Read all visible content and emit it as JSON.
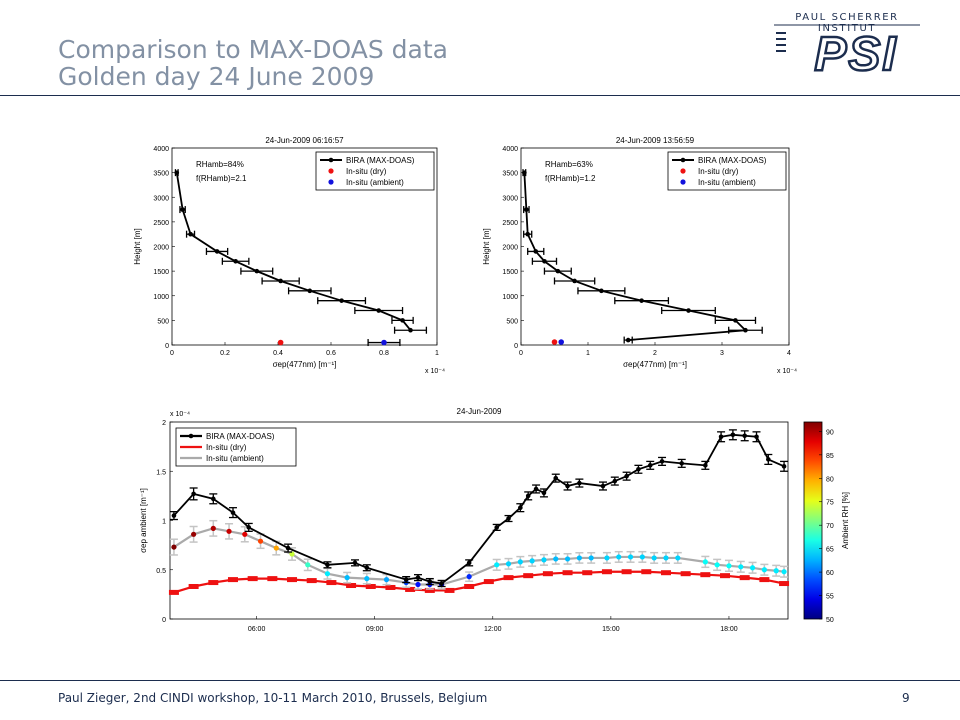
{
  "header": {
    "title_line1": "Comparison to MAX-DOAS data",
    "title_line2": "Golden day 24 June 2009",
    "logo_text": "PAUL SCHERRER INSTITUT",
    "logo_mark": "PSI"
  },
  "footer": {
    "text": "Paul Zieger, 2nd CINDI workshop, 10-11 March 2010, Brussels, Belgium",
    "page_number": "9"
  },
  "colors": {
    "title": "#8391a4",
    "rule": "#1c2d4e",
    "maxdoas": "#000000",
    "dry": "#ee1111",
    "ambient": "#aaaaaa"
  },
  "chart_data": [
    {
      "type": "line",
      "title": "24-Jun-2009 06:16:57",
      "xlabel": "σep(477nm) [m⁻¹]",
      "ylabel": "Height [m]",
      "x_exponent": "x 10⁻⁴",
      "xlim": [
        0,
        1
      ],
      "ylim": [
        0,
        4000
      ],
      "xticks": [
        "0",
        "0.2",
        "0.4",
        "0.6",
        "0.8",
        "1"
      ],
      "yticks": [
        "0",
        "500",
        "1000",
        "1500",
        "2000",
        "2500",
        "3000",
        "3500",
        "4000"
      ],
      "annotations": [
        "RHamb=84%",
        "f(RHamb)=2.1"
      ],
      "legend": {
        "position": "top-right",
        "entries": [
          "BIRA (MAX-DOAS)",
          "In-situ (dry)",
          "In-situ (ambient)"
        ]
      },
      "series": [
        {
          "name": "BIRA (MAX-DOAS)",
          "x": [
            0.018,
            0.04,
            0.07,
            0.17,
            0.24,
            0.32,
            0.41,
            0.52,
            0.64,
            0.78,
            0.87,
            0.9
          ],
          "y": [
            3500,
            2750,
            2250,
            1900,
            1700,
            1500,
            1300,
            1100,
            900,
            700,
            500,
            300
          ],
          "xerr": [
            0.005,
            0.01,
            0.015,
            0.04,
            0.05,
            0.06,
            0.07,
            0.08,
            0.09,
            0.09,
            0.04,
            0.06
          ]
        },
        {
          "name": "In-situ (dry)",
          "x": [
            0.41
          ],
          "y": [
            50
          ]
        },
        {
          "name": "In-situ (ambient)",
          "x": [
            0.8
          ],
          "y": [
            50
          ],
          "xerr": [
            0.06
          ]
        }
      ]
    },
    {
      "type": "line",
      "title": "24-Jun-2009 13:56:59",
      "xlabel": "σep(477nm) [m⁻¹]",
      "ylabel": "Height [m]",
      "x_exponent": "x 10⁻⁴",
      "xlim": [
        0,
        4
      ],
      "ylim": [
        0,
        4000
      ],
      "xticks": [
        "0",
        "1",
        "2",
        "3",
        "4"
      ],
      "yticks": [
        "0",
        "500",
        "1000",
        "1500",
        "2000",
        "2500",
        "3000",
        "3500",
        "4000"
      ],
      "annotations": [
        "RHamb=63%",
        "f(RHamb)=1.2"
      ],
      "legend": {
        "position": "top-right",
        "entries": [
          "BIRA (MAX-DOAS)",
          "In-situ (dry)",
          "In-situ (ambient)"
        ]
      },
      "series": [
        {
          "name": "BIRA (MAX-DOAS)",
          "x": [
            0.05,
            0.08,
            0.1,
            0.22,
            0.35,
            0.55,
            0.8,
            1.2,
            1.8,
            2.5,
            3.2,
            3.35,
            1.6
          ],
          "y": [
            3500,
            2750,
            2250,
            1900,
            1700,
            1500,
            1300,
            1100,
            900,
            700,
            500,
            300,
            100
          ],
          "xerr": [
            0.02,
            0.04,
            0.06,
            0.12,
            0.18,
            0.2,
            0.3,
            0.35,
            0.4,
            0.4,
            0.3,
            0.25,
            0.06
          ]
        },
        {
          "name": "In-situ (dry)",
          "x": [
            0.5
          ],
          "y": [
            60
          ]
        },
        {
          "name": "In-situ (ambient)",
          "x": [
            0.6
          ],
          "y": [
            60
          ]
        }
      ]
    },
    {
      "type": "line",
      "title": "24-Jun-2009",
      "ylabel": "σep ambient [m⁻¹]",
      "y_exponent": "x 10⁻⁴",
      "xlim": [
        3.8,
        19.5
      ],
      "ylim": [
        0,
        2
      ],
      "xticks": [
        "06:00",
        "09:00",
        "12:00",
        "15:00",
        "18:00"
      ],
      "xtick_hours": [
        6,
        9,
        12,
        15,
        18
      ],
      "yticks": [
        "0",
        "0.5",
        "1",
        "1.5",
        "2"
      ],
      "legend": {
        "position": "top-left",
        "entries": [
          "BIRA (MAX-DOAS)",
          "In-situ (dry)",
          "In-situ (ambient)"
        ]
      },
      "colorbar": {
        "label": "Ambient RH [%]",
        "min": 50,
        "max": 92,
        "ticks": [
          "50",
          "55",
          "60",
          "65",
          "70",
          "75",
          "80",
          "85",
          "90"
        ]
      },
      "series": [
        {
          "name": "BIRA (MAX-DOAS)",
          "x": [
            3.9,
            4.4,
            4.9,
            5.4,
            5.8,
            6.8,
            7.8,
            8.5,
            8.8,
            9.8,
            10.1,
            10.4,
            10.7,
            11.4,
            12.1,
            12.4,
            12.7,
            12.9,
            13.1,
            13.3,
            13.6,
            13.9,
            14.2,
            14.8,
            15.1,
            15.4,
            15.7,
            16.0,
            16.3,
            16.8,
            17.4,
            17.8,
            18.1,
            18.4,
            18.7,
            19.0,
            19.4
          ],
          "y": [
            1.05,
            1.27,
            1.22,
            1.08,
            0.93,
            0.72,
            0.55,
            0.57,
            0.52,
            0.4,
            0.42,
            0.38,
            0.36,
            0.57,
            0.93,
            1.02,
            1.13,
            1.25,
            1.32,
            1.28,
            1.43,
            1.35,
            1.38,
            1.35,
            1.4,
            1.45,
            1.52,
            1.56,
            1.6,
            1.58,
            1.56,
            1.85,
            1.87,
            1.86,
            1.85,
            1.62,
            1.55
          ],
          "yerr": [
            0.04,
            0.06,
            0.05,
            0.05,
            0.04,
            0.04,
            0.03,
            0.03,
            0.03,
            0.03,
            0.03,
            0.03,
            0.03,
            0.03,
            0.03,
            0.03,
            0.04,
            0.04,
            0.04,
            0.04,
            0.04,
            0.04,
            0.04,
            0.04,
            0.04,
            0.04,
            0.04,
            0.04,
            0.04,
            0.04,
            0.04,
            0.05,
            0.05,
            0.05,
            0.05,
            0.05,
            0.05
          ]
        },
        {
          "name": "In-situ (dry)",
          "x": [
            3.9,
            4.4,
            4.9,
            5.4,
            5.9,
            6.4,
            6.9,
            7.4,
            7.9,
            8.4,
            8.9,
            9.4,
            9.9,
            10.4,
            10.9,
            11.4,
            11.9,
            12.4,
            12.9,
            13.4,
            13.9,
            14.4,
            14.9,
            15.4,
            15.9,
            16.4,
            16.9,
            17.4,
            17.9,
            18.4,
            18.9,
            19.4
          ],
          "y": [
            0.27,
            0.33,
            0.37,
            0.4,
            0.41,
            0.41,
            0.4,
            0.39,
            0.37,
            0.34,
            0.33,
            0.32,
            0.3,
            0.29,
            0.29,
            0.33,
            0.38,
            0.42,
            0.44,
            0.46,
            0.47,
            0.47,
            0.48,
            0.48,
            0.48,
            0.47,
            0.46,
            0.45,
            0.44,
            0.42,
            0.4,
            0.36
          ]
        },
        {
          "name": "In-situ (ambient)",
          "x": [
            3.9,
            4.4,
            4.9,
            5.3,
            5.7,
            6.1,
            6.5,
            6.9,
            7.3,
            7.8,
            8.3,
            8.8,
            9.3,
            9.8,
            10.1,
            10.4,
            10.7,
            11.4,
            12.1,
            12.4,
            12.7,
            13.0,
            13.3,
            13.6,
            13.9,
            14.2,
            14.5,
            14.9,
            15.2,
            15.5,
            15.8,
            16.1,
            16.4,
            16.7,
            17.4,
            17.7,
            18.0,
            18.3,
            18.6,
            18.9,
            19.2,
            19.4
          ],
          "y": [
            0.73,
            0.86,
            0.92,
            0.89,
            0.86,
            0.79,
            0.72,
            0.66,
            0.55,
            0.46,
            0.42,
            0.41,
            0.4,
            0.37,
            0.35,
            0.35,
            0.35,
            0.43,
            0.55,
            0.56,
            0.58,
            0.59,
            0.6,
            0.61,
            0.61,
            0.62,
            0.62,
            0.62,
            0.63,
            0.63,
            0.63,
            0.62,
            0.62,
            0.62,
            0.58,
            0.55,
            0.54,
            0.53,
            0.52,
            0.5,
            0.49,
            0.48
          ],
          "rh": [
            92,
            91,
            90,
            89,
            88,
            84,
            80,
            74,
            68,
            65,
            63,
            63,
            62,
            58,
            56,
            56,
            55,
            57,
            65,
            64,
            64,
            64,
            64,
            63,
            63,
            63,
            63,
            64,
            64,
            64,
            64,
            64,
            64,
            64,
            66,
            66,
            66,
            65,
            65,
            65,
            65,
            65
          ]
        }
      ]
    }
  ]
}
